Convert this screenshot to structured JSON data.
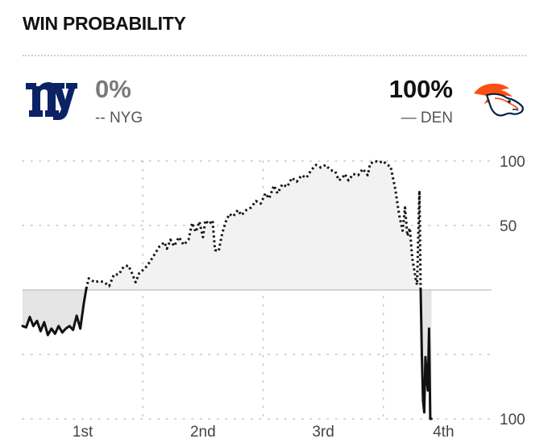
{
  "header": {
    "title": "WIN PROBABILITY"
  },
  "teams": {
    "away": {
      "abbr": "NYG",
      "probability": "0%",
      "legend_marker": "--",
      "line_style": "dotted",
      "logo_icon": "giants-ny-logo-icon",
      "color": "#0B2265"
    },
    "home": {
      "abbr": "DEN",
      "probability": "100%",
      "legend_marker": "—",
      "line_style": "solid",
      "logo_icon": "broncos-horse-logo-icon",
      "color": "#FB4F14",
      "color_secondary": "#002244"
    }
  },
  "chart_data": {
    "type": "line",
    "title": "WIN PROBABILITY",
    "y_tick_labels": [
      "100",
      "50",
      "100"
    ],
    "y_ticks": [
      100,
      50,
      -100
    ],
    "x_tick_labels": [
      "1st",
      "2nd",
      "3rd",
      "4th"
    ],
    "ylim": [
      -100,
      100
    ],
    "xlim": [
      0,
      3.9
    ],
    "grid": true,
    "legend_placement": "top",
    "x_unit": "quarters elapsed",
    "series": [
      {
        "name": "NYG",
        "style": "dotted",
        "points": [
          [
            0.53,
            1
          ],
          [
            0.55,
            9
          ],
          [
            0.6,
            6
          ],
          [
            0.64,
            7
          ],
          [
            0.68,
            6
          ],
          [
            0.72,
            3
          ],
          [
            0.76,
            12
          ],
          [
            0.8,
            12
          ],
          [
            0.84,
            18
          ],
          [
            0.88,
            19
          ],
          [
            0.91,
            13
          ],
          [
            0.94,
            6
          ],
          [
            0.97,
            13
          ],
          [
            1.02,
            17
          ],
          [
            1.06,
            22
          ],
          [
            1.1,
            28
          ],
          [
            1.14,
            34
          ],
          [
            1.18,
            37
          ],
          [
            1.2,
            32
          ],
          [
            1.23,
            39
          ],
          [
            1.26,
            34
          ],
          [
            1.3,
            41
          ],
          [
            1.34,
            35
          ],
          [
            1.38,
            39
          ],
          [
            1.41,
            52
          ],
          [
            1.44,
            45
          ],
          [
            1.47,
            53
          ],
          [
            1.5,
            41
          ],
          [
            1.52,
            54
          ],
          [
            1.55,
            51
          ],
          [
            1.58,
            54
          ],
          [
            1.6,
            31
          ],
          [
            1.63,
            30
          ],
          [
            1.66,
            44
          ],
          [
            1.69,
            53
          ],
          [
            1.72,
            59
          ],
          [
            1.75,
            57
          ],
          [
            1.79,
            62
          ],
          [
            1.82,
            58
          ],
          [
            1.86,
            62
          ],
          [
            1.9,
            64
          ],
          [
            1.94,
            69
          ],
          [
            1.98,
            67
          ],
          [
            2.02,
            75
          ],
          [
            2.05,
            71
          ],
          [
            2.09,
            81
          ],
          [
            2.12,
            75
          ],
          [
            2.16,
            82
          ],
          [
            2.2,
            80
          ],
          [
            2.24,
            87
          ],
          [
            2.28,
            84
          ],
          [
            2.32,
            89
          ],
          [
            2.36,
            87
          ],
          [
            2.4,
            93
          ],
          [
            2.44,
            97
          ],
          [
            2.48,
            95
          ],
          [
            2.52,
            97
          ],
          [
            2.56,
            93
          ],
          [
            2.6,
            92
          ],
          [
            2.63,
            85
          ],
          [
            2.66,
            87
          ],
          [
            2.68,
            90
          ],
          [
            2.71,
            85
          ],
          [
            2.75,
            90
          ],
          [
            2.79,
            89
          ],
          [
            2.83,
            94
          ],
          [
            2.87,
            89
          ],
          [
            2.89,
            98
          ],
          [
            2.93,
            100
          ],
          [
            2.97,
            99
          ],
          [
            3.0,
            100
          ],
          [
            3.03,
            97
          ],
          [
            3.06,
            96
          ],
          [
            3.1,
            78
          ],
          [
            3.13,
            59
          ],
          [
            3.16,
            46
          ],
          [
            3.18,
            64
          ],
          [
            3.2,
            42
          ],
          [
            3.22,
            48
          ],
          [
            3.24,
            25
          ],
          [
            3.27,
            8
          ],
          [
            3.28,
            4
          ],
          [
            3.3,
            77
          ],
          [
            3.31,
            1
          ]
        ]
      },
      {
        "name": "DEN",
        "style": "solid",
        "points": [
          [
            0.0,
            -28
          ],
          [
            0.03,
            -29
          ],
          [
            0.06,
            -21
          ],
          [
            0.09,
            -28
          ],
          [
            0.12,
            -24
          ],
          [
            0.15,
            -32
          ],
          [
            0.18,
            -25
          ],
          [
            0.21,
            -35
          ],
          [
            0.24,
            -30
          ],
          [
            0.27,
            -34
          ],
          [
            0.3,
            -28
          ],
          [
            0.33,
            -33
          ],
          [
            0.36,
            -30
          ],
          [
            0.39,
            -28
          ],
          [
            0.42,
            -31
          ],
          [
            0.45,
            -20
          ],
          [
            0.48,
            -30
          ],
          [
            0.51,
            -10
          ],
          [
            0.53,
            1
          ],
          [
            3.31,
            1
          ],
          [
            3.32,
            -50
          ],
          [
            3.33,
            -86
          ],
          [
            3.34,
            -95
          ],
          [
            3.35,
            -52
          ],
          [
            3.36,
            -68
          ],
          [
            3.37,
            -78
          ],
          [
            3.38,
            -30
          ],
          [
            3.39,
            -100
          ],
          [
            3.4,
            -100
          ]
        ]
      }
    ]
  }
}
